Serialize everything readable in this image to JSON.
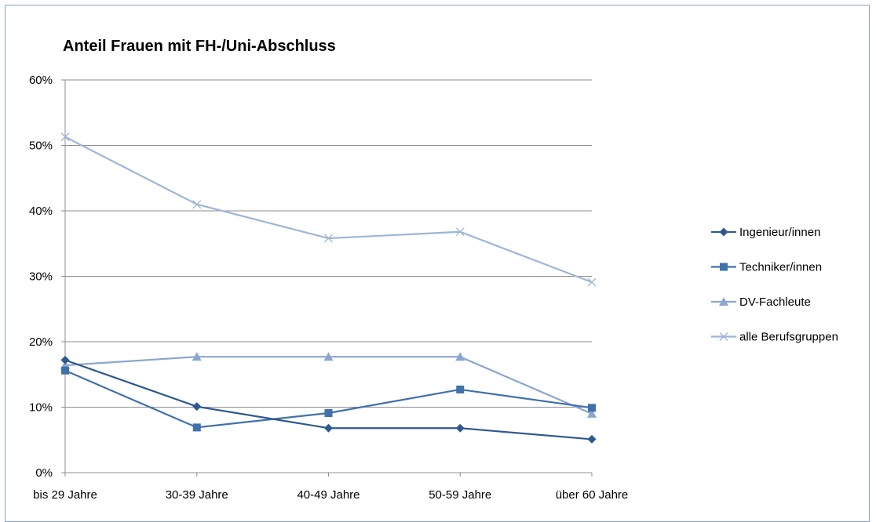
{
  "chart_data": {
    "type": "line",
    "title": "Anteil Frauen mit FH-/Uni-Abschluss",
    "xlabel": "",
    "ylabel": "",
    "categories": [
      "bis 29 Jahre",
      "30-39 Jahre",
      "40-49 Jahre",
      "50-59 Jahre",
      "über 60 Jahre"
    ],
    "y_ticks": [
      "0%",
      "10%",
      "20%",
      "30%",
      "40%",
      "50%",
      "60%"
    ],
    "ylim": [
      0,
      60
    ],
    "grid": true,
    "legend_position": "right",
    "series": [
      {
        "name": "Ingenieur/innen",
        "values": [
          17.2,
          10.1,
          6.8,
          6.8,
          5.1
        ],
        "color": "#2e5a8e",
        "marker": "diamond"
      },
      {
        "name": "Techniker/innen",
        "values": [
          15.6,
          6.9,
          9.1,
          12.7,
          9.9
        ],
        "color": "#4071ab",
        "marker": "square"
      },
      {
        "name": "DV-Fachleute",
        "values": [
          16.4,
          17.7,
          17.7,
          17.7,
          9.0
        ],
        "color": "#8ba6cf",
        "marker": "triangle"
      },
      {
        "name": "alle Berufsgruppen",
        "values": [
          51.3,
          41.0,
          35.8,
          36.8,
          29.1
        ],
        "color": "#9fb5d8",
        "marker": "x"
      }
    ]
  }
}
